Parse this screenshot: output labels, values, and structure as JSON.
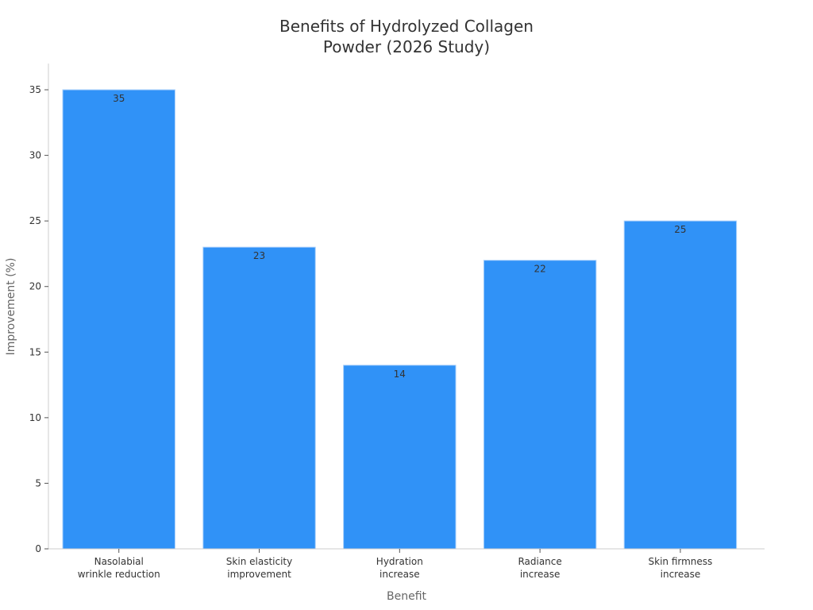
{
  "chart_data": {
    "type": "bar",
    "title_lines": [
      "Benefits of Hydrolyzed Collagen",
      "Powder (2026 Study)"
    ],
    "xlabel": "Benefit",
    "ylabel": "Improvement (%)",
    "categories": [
      [
        "Nasolabial",
        "wrinkle reduction"
      ],
      [
        "Skin elasticity",
        "improvement"
      ],
      [
        "Hydration",
        "increase"
      ],
      [
        "Radiance",
        "increase"
      ],
      [
        "Skin firmness",
        "increase"
      ]
    ],
    "values": [
      35,
      23,
      14,
      22,
      25
    ],
    "data_labels": [
      "35",
      "23",
      "14",
      "22",
      "25"
    ],
    "ylim": [
      0,
      37
    ],
    "yticks": [
      0,
      5,
      10,
      15,
      20,
      25,
      30,
      35
    ],
    "ytick_labels": [
      "0",
      "5",
      "10",
      "15",
      "20",
      "25",
      "30",
      "35"
    ],
    "grid": false,
    "bar_color": "#3092f7"
  }
}
